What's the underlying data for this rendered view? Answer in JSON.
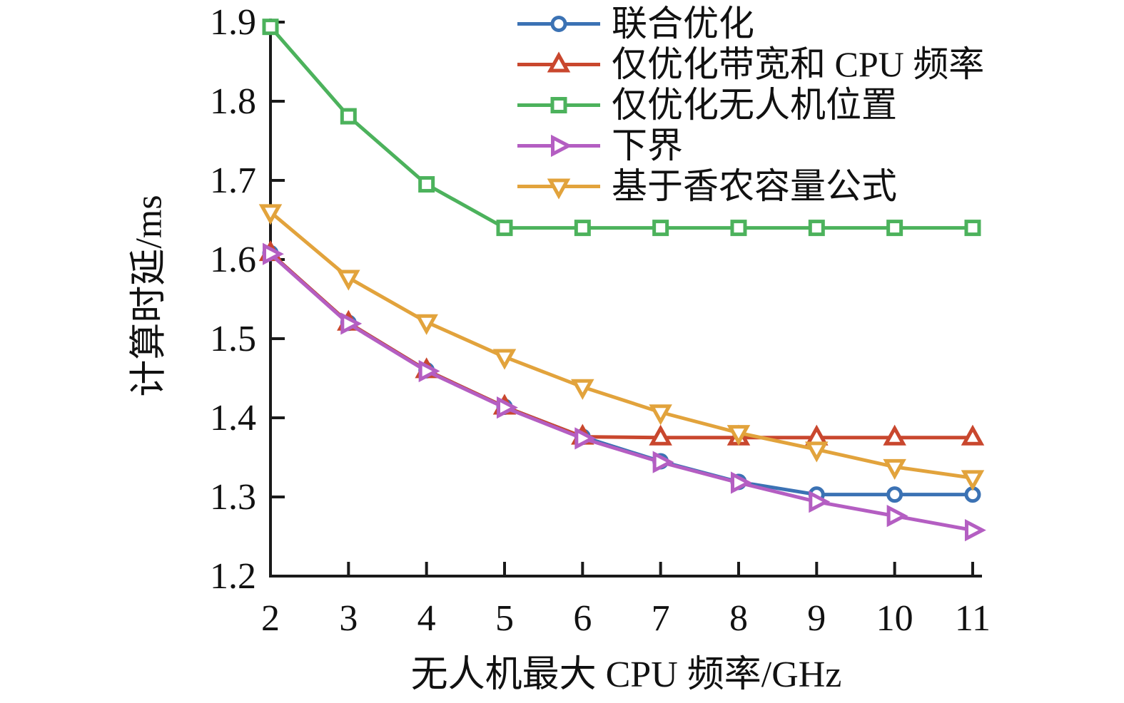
{
  "figure": {
    "background": "#ffffff",
    "axis_color": "#1a1a1a",
    "text_color": "#111111"
  },
  "chart_data": {
    "type": "line",
    "title": "",
    "xlabel": "无人机最大 CPU 频率/GHz",
    "ylabel": "计算时延/ms",
    "x": [
      2,
      3,
      4,
      5,
      6,
      7,
      8,
      9,
      10,
      11
    ],
    "xlim": [
      2,
      11.12
    ],
    "ylim": [
      1.2,
      1.9
    ],
    "x_ticks": [
      2,
      3,
      4,
      5,
      6,
      7,
      8,
      9,
      10,
      11
    ],
    "x_tick_labels": [
      "2",
      "3",
      "4",
      "5",
      "6",
      "7",
      "8",
      "9",
      "10",
      "11"
    ],
    "y_ticks": [
      1.2,
      1.3,
      1.4,
      1.5,
      1.6,
      1.7,
      1.8,
      1.9
    ],
    "y_tick_labels": [
      "1.2",
      "1.3",
      "1.4",
      "1.5",
      "1.6",
      "1.7",
      "1.8",
      "1.9"
    ],
    "grid": false,
    "legend_position": "top-right-inside",
    "series": [
      {
        "name": "联合优化",
        "marker": "circle",
        "color": "#3b72b4",
        "values": [
          1.608,
          1.52,
          1.46,
          1.414,
          1.376,
          1.345,
          1.319,
          1.303,
          1.303,
          1.303
        ]
      },
      {
        "name": "仅优化带宽和 CPU 频率",
        "marker": "triangle-up",
        "color": "#c9472e",
        "values": [
          1.608,
          1.52,
          1.46,
          1.414,
          1.376,
          1.375,
          1.375,
          1.375,
          1.375,
          1.375
        ]
      },
      {
        "name": "仅优化无人机位置",
        "marker": "square",
        "color": "#4cb25c",
        "values": [
          1.894,
          1.781,
          1.695,
          1.64,
          1.64,
          1.64,
          1.64,
          1.64,
          1.64,
          1.64
        ]
      },
      {
        "name": "下界",
        "marker": "triangle-right",
        "color": "#b45ec2",
        "values": [
          1.607,
          1.519,
          1.459,
          1.413,
          1.374,
          1.344,
          1.318,
          1.294,
          1.276,
          1.258
        ]
      },
      {
        "name": "基于香农容量公式",
        "marker": "triangle-down",
        "color": "#e2a33c",
        "values": [
          1.66,
          1.577,
          1.521,
          1.477,
          1.439,
          1.407,
          1.381,
          1.36,
          1.338,
          1.324
        ]
      }
    ]
  }
}
